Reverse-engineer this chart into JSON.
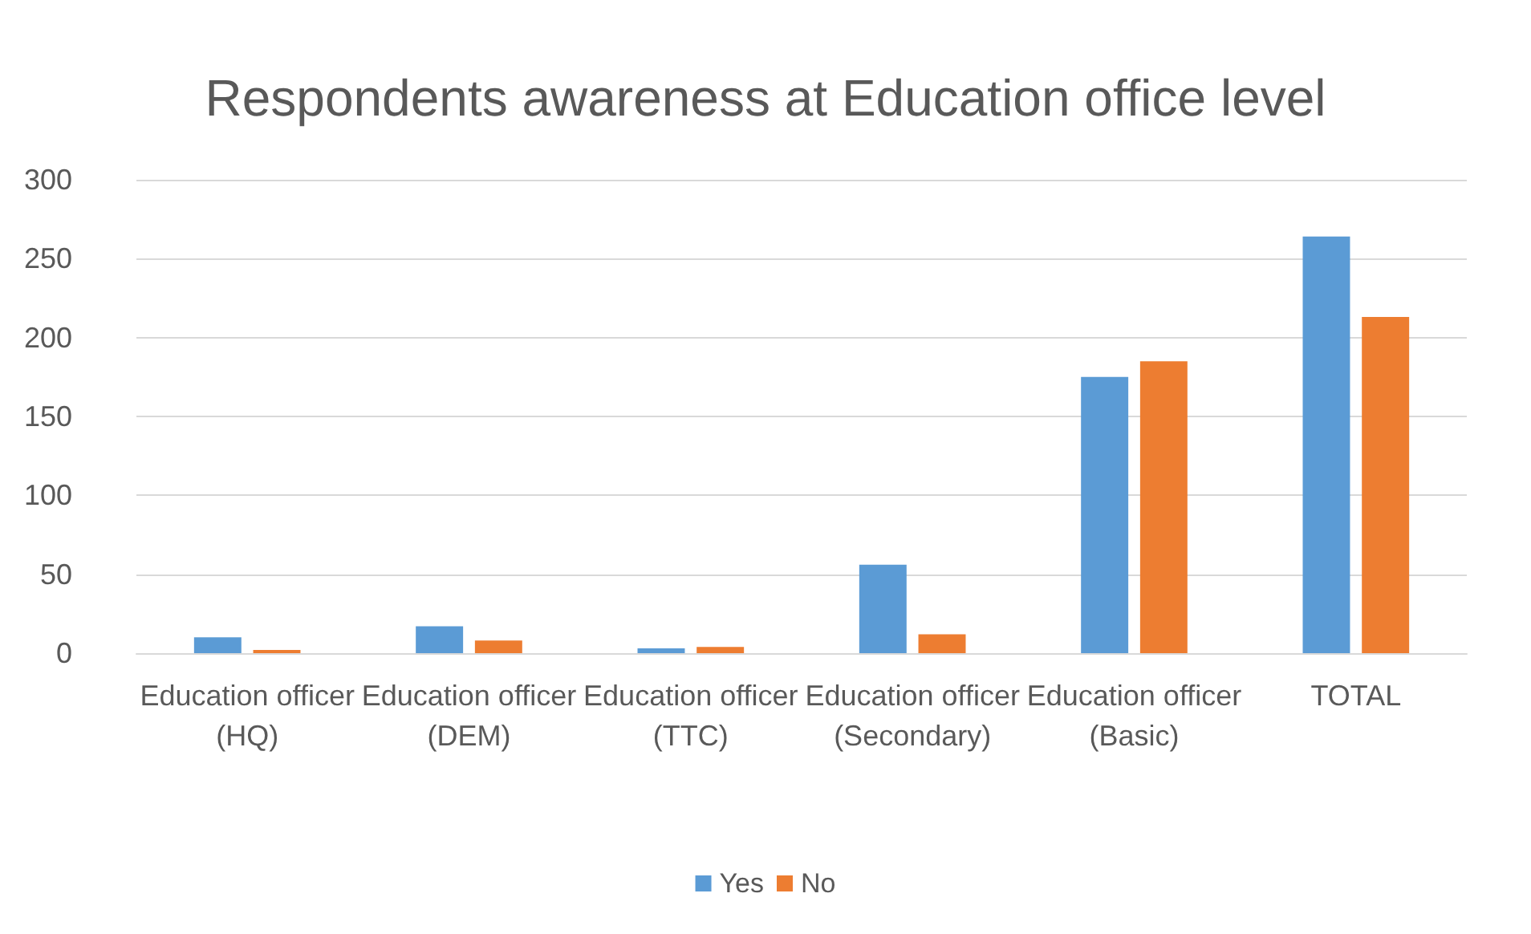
{
  "chart_data": {
    "type": "bar",
    "title": "Respondents awareness at Education office level",
    "categories": [
      "Education officer (HQ)",
      "Education officer (DEM)",
      "Education officer (TTC)",
      "Education officer (Secondary)",
      "Education officer (Basic)",
      "TOTAL"
    ],
    "series": [
      {
        "name": "Yes",
        "color": "#5b9bd5",
        "values": [
          10,
          17,
          3,
          56,
          175,
          264
        ]
      },
      {
        "name": "No",
        "color": "#ed7d31",
        "values": [
          2,
          8,
          4,
          12,
          185,
          213
        ]
      }
    ],
    "ylim": [
      0,
      300
    ],
    "yticks": [
      0,
      50,
      100,
      150,
      200,
      250,
      300
    ],
    "grid": "y",
    "legend": "bottom"
  }
}
